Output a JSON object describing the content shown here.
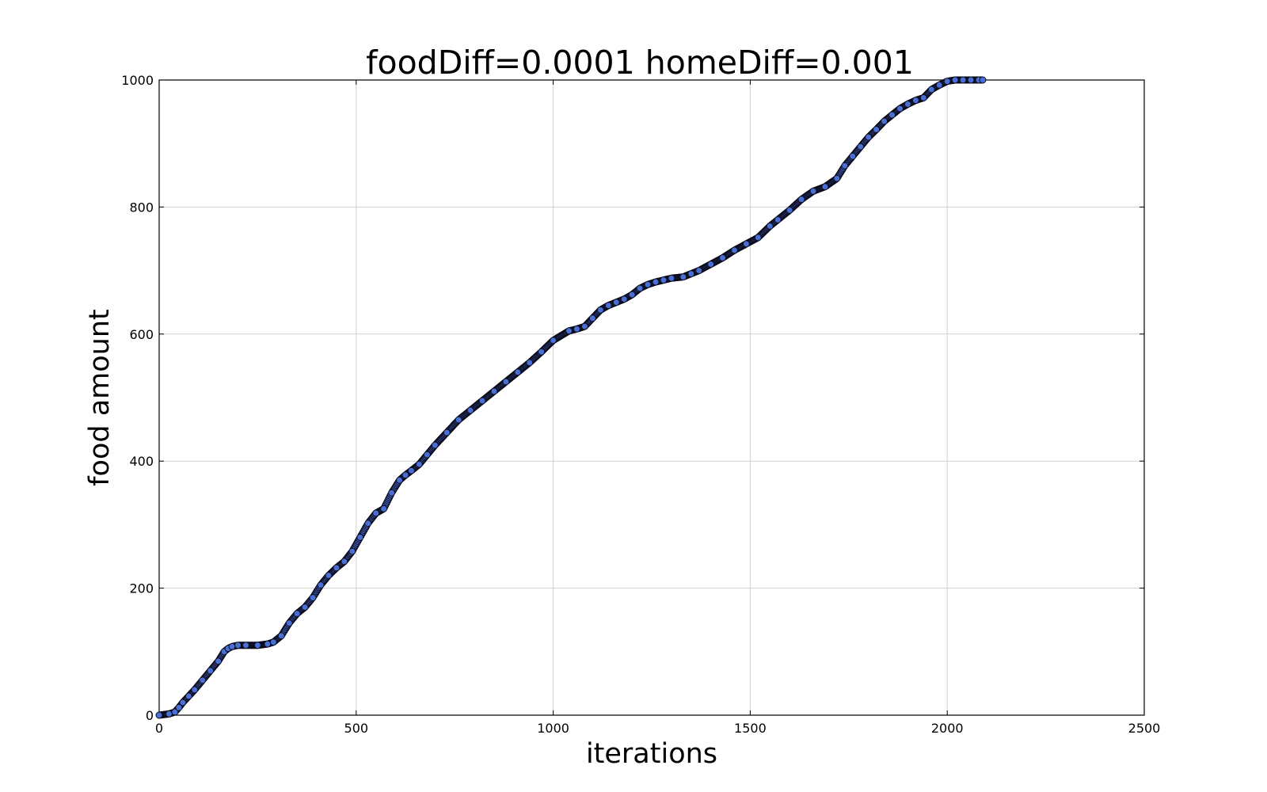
{
  "chart_data": {
    "type": "scatter",
    "title": "foodDiff=0.0001 homeDiff=0.001",
    "xlabel": "iterations",
    "ylabel": "food amount",
    "xlim": [
      0,
      2500
    ],
    "ylim": [
      0,
      1000
    ],
    "xticks": [
      "0",
      "500",
      "1000",
      "1500",
      "2000",
      "2500"
    ],
    "yticks": [
      "0",
      "200",
      "400",
      "600",
      "800",
      "1000"
    ],
    "grid": true,
    "marker_color": "#4a6fd4",
    "marker_edge_color": "#0a0a1a",
    "series": [
      {
        "name": "",
        "x": [
          0,
          25,
          40,
          50,
          60,
          75,
          90,
          110,
          130,
          150,
          165,
          175,
          185,
          200,
          220,
          250,
          275,
          290,
          310,
          330,
          350,
          370,
          390,
          410,
          430,
          450,
          470,
          490,
          510,
          530,
          550,
          570,
          590,
          610,
          625,
          640,
          660,
          680,
          700,
          730,
          760,
          790,
          820,
          850,
          880,
          910,
          940,
          970,
          1000,
          1040,
          1060,
          1080,
          1100,
          1120,
          1140,
          1160,
          1180,
          1200,
          1220,
          1240,
          1260,
          1280,
          1300,
          1330,
          1350,
          1370,
          1400,
          1430,
          1460,
          1490,
          1520,
          1550,
          1570,
          1600,
          1630,
          1660,
          1690,
          1720,
          1740,
          1760,
          1780,
          1800,
          1820,
          1840,
          1860,
          1880,
          1900,
          1920,
          1940,
          1960,
          1980,
          2000,
          2020,
          2040,
          2060,
          2080,
          2090
        ],
        "y": [
          0,
          2,
          5,
          12,
          20,
          30,
          40,
          55,
          70,
          85,
          100,
          105,
          108,
          110,
          110,
          110,
          112,
          115,
          125,
          145,
          160,
          170,
          185,
          205,
          220,
          232,
          242,
          258,
          280,
          302,
          318,
          325,
          350,
          370,
          378,
          385,
          395,
          410,
          425,
          445,
          465,
          480,
          495,
          510,
          525,
          540,
          555,
          572,
          590,
          605,
          608,
          612,
          625,
          638,
          645,
          650,
          655,
          662,
          672,
          678,
          682,
          685,
          688,
          690,
          695,
          700,
          710,
          720,
          732,
          742,
          752,
          770,
          780,
          795,
          812,
          825,
          832,
          845,
          865,
          880,
          895,
          910,
          922,
          935,
          945,
          955,
          962,
          968,
          972,
          985,
          992,
          998,
          1000,
          1000,
          1000,
          1000,
          1000
        ]
      }
    ]
  }
}
